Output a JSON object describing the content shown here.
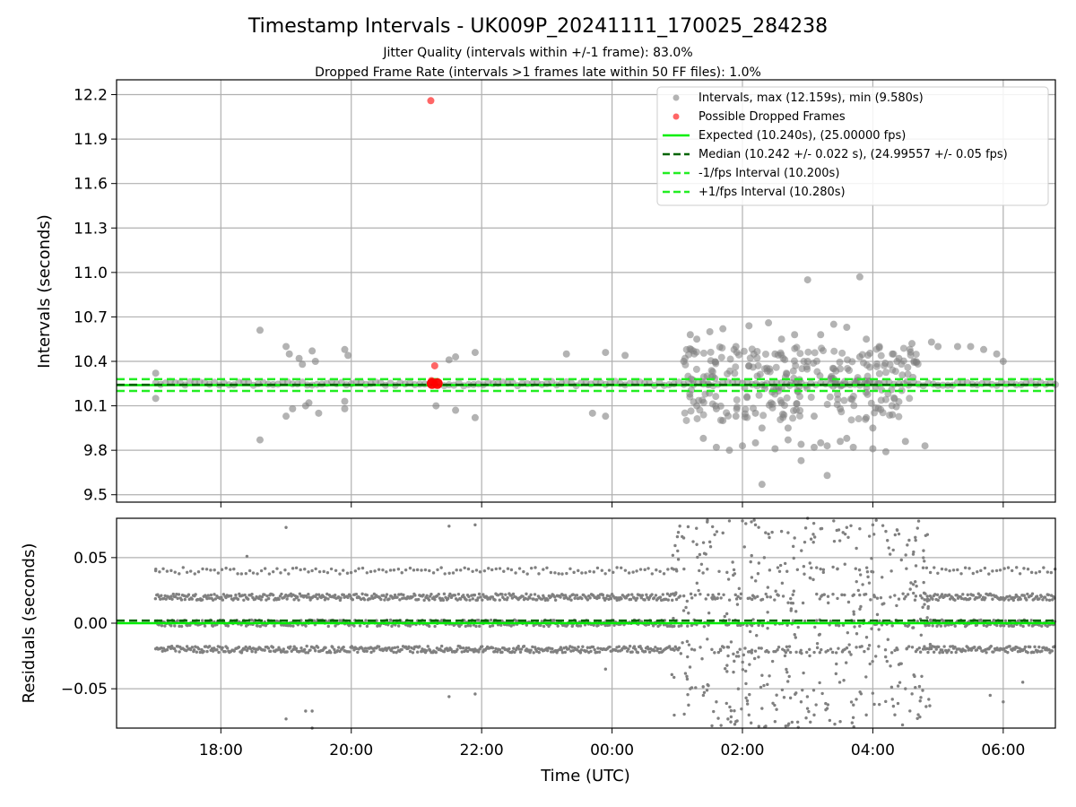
{
  "figure": {
    "title": "Timestamp Intervals - UK009P_20241111_170025_284238",
    "subtitle1": "Jitter Quality (intervals within +/-1 frame): 83.0%",
    "subtitle2": "Dropped Frame Rate (intervals >1 frames late within 50 FF files): 1.0%"
  },
  "chart_data": [
    {
      "type": "scatter",
      "panel": "top",
      "ylabel": "Intervals (seconds)",
      "xlim": [
        16.4,
        30.8
      ],
      "ylim": [
        9.45,
        12.3
      ],
      "yticks": [
        9.5,
        9.8,
        10.1,
        10.4,
        10.7,
        11.0,
        11.3,
        11.6,
        11.9,
        12.2
      ],
      "ytick_labels": [
        "9.5",
        "9.8",
        "10.1",
        "10.4",
        "10.7",
        "11.0",
        "11.3",
        "11.6",
        "11.9",
        "12.2"
      ],
      "grid": true,
      "legend_placement": "upper right",
      "series": [
        {
          "name": "Intervals, max (12.159s), min (9.580s)",
          "kind": "points",
          "color": "#808080",
          "x": [
            17.0,
            17.0,
            18.6,
            18.6,
            19.0,
            19.0,
            19.05,
            19.1,
            19.2,
            19.25,
            19.3,
            19.35,
            19.4,
            19.45,
            19.5,
            19.9,
            19.95,
            19.9,
            19.9,
            21.3,
            21.5,
            21.6,
            21.6,
            21.9,
            21.9,
            23.3,
            23.7,
            23.9,
            23.9,
            24.2,
            25.1,
            25.2,
            25.3,
            25.5,
            25.7,
            25.9,
            26.1,
            26.4,
            26.6,
            26.8,
            27.0,
            27.2,
            27.4,
            27.6,
            27.8,
            27.9,
            28.1,
            28.3,
            28.4,
            28.6,
            28.9,
            29.0,
            29.3,
            29.5,
            29.7,
            29.9,
            30.0,
            25.4,
            25.6,
            25.8,
            26.0,
            26.2,
            26.5,
            26.7,
            26.9,
            27.1,
            27.3,
            27.5,
            27.7,
            28.0,
            28.2,
            28.5,
            28.8,
            25.6,
            25.9,
            26.3,
            26.7,
            27.2,
            27.6,
            28.0,
            26.1,
            26.5,
            27.0,
            27.4,
            27.8,
            25.3,
            25.7,
            26.2,
            26.6,
            27.1,
            27.5,
            27.9,
            28.3,
            26.3,
            26.9,
            27.3
          ],
          "y": [
            10.32,
            10.15,
            10.61,
            9.87,
            10.5,
            10.03,
            10.45,
            10.08,
            10.42,
            10.38,
            10.1,
            10.12,
            10.47,
            10.4,
            10.05,
            10.48,
            10.44,
            10.13,
            10.08,
            10.1,
            10.41,
            10.43,
            10.07,
            10.46,
            10.02,
            10.45,
            10.05,
            10.46,
            10.03,
            10.44,
            10.4,
            10.58,
            10.55,
            10.6,
            10.62,
            10.5,
            10.64,
            10.66,
            10.55,
            10.58,
            10.95,
            10.58,
            10.65,
            10.63,
            10.97,
            10.55,
            10.5,
            10.45,
            10.42,
            10.52,
            10.53,
            10.5,
            10.5,
            10.5,
            10.48,
            10.45,
            10.4,
            9.88,
            9.82,
            9.8,
            9.83,
            9.85,
            9.81,
            9.87,
            9.84,
            9.82,
            9.83,
            9.86,
            9.82,
            9.81,
            9.79,
            9.86,
            9.83,
            10.08,
            10.03,
            9.95,
            9.95,
            9.85,
            9.88,
            9.95,
            10.37,
            10.45,
            10.4,
            10.35,
            10.43,
            10.1,
            10.0,
            10.05,
            10.12,
            10.03,
            10.08,
            10.02,
            10.04,
            9.57,
            9.73,
            9.63
          ]
        },
        {
          "name": "Possible Dropped Frames",
          "kind": "points",
          "color": "#ff0000",
          "x": [
            21.22,
            21.23,
            21.28,
            21.24,
            21.32
          ],
          "y": [
            12.159,
            10.27,
            10.37,
            10.25,
            10.25
          ]
        }
      ],
      "lines": [
        {
          "name": "Expected (10.240s), (25.00000 fps)",
          "y": 10.24,
          "color": "#00ee00",
          "style": "solid"
        },
        {
          "name": "Median (10.242 +/- 0.022 s), (24.99557 +/- 0.05 fps)",
          "y": 10.242,
          "color": "#006400",
          "style": "dashed"
        },
        {
          "name": "-1/fps Interval (10.200s)",
          "y": 10.2,
          "color": "#22ee22",
          "style": "dashed"
        },
        {
          "name": "+1/fps Interval (10.280s)",
          "y": 10.28,
          "color": "#22ee22",
          "style": "dashed"
        }
      ]
    },
    {
      "type": "scatter",
      "panel": "bottom",
      "xlabel": "Time (UTC)",
      "ylabel": "Residuals (seconds)",
      "xlim": [
        16.4,
        30.8
      ],
      "ylim": [
        -0.08,
        0.08
      ],
      "yticks": [
        -0.05,
        0.0,
        0.05
      ],
      "ytick_labels": [
        "−0.05",
        "0.00",
        "0.05"
      ],
      "xticks": [
        18,
        20,
        22,
        24,
        26,
        28,
        30
      ],
      "xtick_labels": [
        "18:00",
        "20:00",
        "22:00",
        "00:00",
        "02:00",
        "04:00",
        "06:00"
      ],
      "grid": true,
      "series": [
        {
          "name": "",
          "kind": "points",
          "color": "#808080",
          "x": [
            17.0,
            18.4,
            19.0,
            19.4,
            21.5,
            21.9,
            21.5,
            21.9,
            23.9,
            19.0,
            19.3,
            19.4,
            25.1,
            25.3,
            25.5,
            25.8,
            26.0,
            26.2,
            26.4,
            26.6,
            26.8,
            27.0,
            27.2,
            27.4,
            27.6,
            27.8,
            28.0,
            28.2,
            28.4,
            25.2,
            25.4,
            25.6,
            25.9,
            26.1,
            26.3,
            26.5,
            26.7,
            26.9,
            27.1,
            27.3,
            27.5,
            27.7,
            27.9,
            28.1,
            28.3,
            28.5,
            30.0,
            30.3,
            29.8
          ],
          "y": [
            0.04,
            0.051,
            0.073,
            -0.067,
            -0.056,
            0.075,
            0.074,
            -0.054,
            -0.035,
            -0.073,
            -0.067,
            -0.08,
            0.065,
            0.06,
            0.062,
            0.078,
            0.078,
            0.075,
            0.068,
            0.07,
            0.065,
            0.08,
            0.072,
            0.078,
            0.073,
            0.072,
            0.075,
            0.07,
            0.068,
            -0.05,
            -0.055,
            -0.06,
            -0.075,
            -0.07,
            -0.065,
            -0.075,
            -0.078,
            -0.06,
            -0.07,
            -0.065,
            -0.075,
            -0.072,
            -0.07,
            -0.062,
            -0.058,
            -0.05,
            -0.06,
            -0.045,
            -0.055
          ]
        }
      ],
      "bands": [
        {
          "name": "",
          "y": 0.02,
          "x_start": 17.0,
          "x_end": 30.8,
          "color": "#808080"
        },
        {
          "name": "",
          "y": 0.0,
          "x_start": 17.0,
          "x_end": 30.8,
          "color": "#808080"
        },
        {
          "name": "",
          "y": -0.02,
          "x_start": 17.0,
          "x_end": 30.8,
          "color": "#808080"
        },
        {
          "name": "",
          "y": 0.04,
          "x_start": 17.0,
          "x_end": 30.8,
          "color": "#808080"
        }
      ],
      "lines": [
        {
          "name": "",
          "y": 0.0,
          "color": "#00ee00",
          "style": "solid"
        },
        {
          "name": "",
          "y": 0.002,
          "color": "#006400",
          "style": "dashed"
        }
      ]
    }
  ]
}
